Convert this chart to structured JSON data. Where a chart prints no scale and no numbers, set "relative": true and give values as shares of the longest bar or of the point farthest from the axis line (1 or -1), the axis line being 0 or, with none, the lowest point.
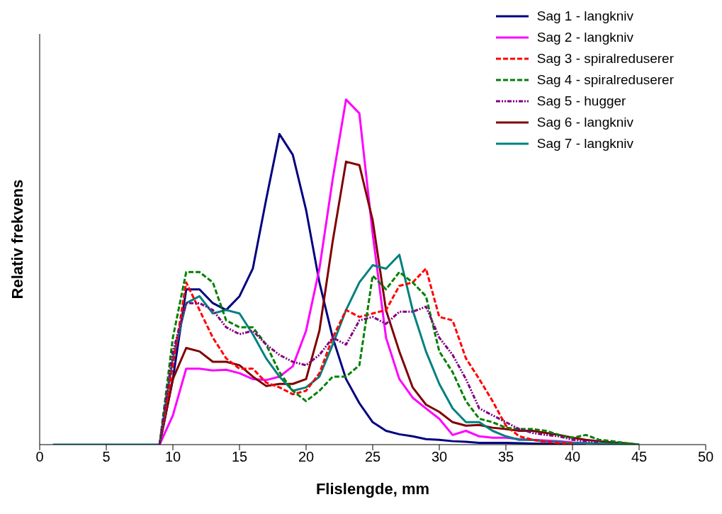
{
  "chart_data": {
    "type": "line",
    "relative": true,
    "xlabel": "Flislengde, mm",
    "ylabel": "Relativ frekvens",
    "xlim": [
      0,
      50
    ],
    "xticks": [
      0,
      5,
      10,
      15,
      20,
      25,
      30,
      35,
      40,
      45,
      50
    ],
    "grid": false,
    "legend": "top right",
    "marker": "none",
    "x": [
      1,
      8,
      9,
      10,
      11,
      12,
      13,
      14,
      15,
      16,
      17,
      18,
      19,
      20,
      21,
      22,
      23,
      24,
      25,
      26,
      27,
      28,
      29,
      30,
      31,
      32,
      33,
      34,
      35,
      36,
      37,
      38,
      39,
      40,
      41,
      42,
      43,
      44,
      45
    ],
    "series": [
      {
        "name": "Sag 1 - langkniv",
        "color": "#000080",
        "line_style": "solid",
        "values": [
          null,
          null,
          0,
          0.19,
          0.45,
          0.45,
          0.41,
          0.39,
          0.43,
          0.51,
          0.71,
          0.9,
          0.84,
          0.68,
          0.47,
          0.31,
          0.19,
          0.12,
          0.065,
          0.04,
          0.03,
          0.024,
          0.016,
          0.014,
          0.01,
          0.008,
          0.005,
          0.005,
          0.005,
          0.004,
          0.003,
          0.002,
          0.001,
          0,
          0,
          null,
          null,
          null,
          null
        ]
      },
      {
        "name": "Sag 2 - langkniv",
        "color": "#ff00ff",
        "line_style": "solid",
        "values": [
          null,
          null,
          0,
          0.085,
          0.22,
          0.22,
          0.215,
          0.217,
          0.207,
          0.19,
          0.187,
          0.197,
          0.227,
          0.33,
          0.51,
          0.77,
          1,
          0.96,
          0.61,
          0.31,
          0.19,
          0.136,
          0.105,
          0.075,
          0.028,
          0.04,
          0.024,
          0.02,
          0.02,
          0.016,
          0.014,
          0.012,
          0.01,
          0.006,
          0.004,
          null,
          null,
          null,
          null
        ]
      },
      {
        "name": "Sag 3 - spiralreduserer",
        "color": "#ff0000",
        "line_style": "dashed",
        "values": [
          null,
          null,
          0,
          0.23,
          0.47,
          0.39,
          0.31,
          0.25,
          0.22,
          0.22,
          0.18,
          0.166,
          0.146,
          0.156,
          0.207,
          0.31,
          0.39,
          0.37,
          0.38,
          0.39,
          0.46,
          0.47,
          0.51,
          0.37,
          0.36,
          0.25,
          0.19,
          0.126,
          0.055,
          0.024,
          0.014,
          0.008,
          0.004,
          0.003,
          null,
          null,
          null,
          null,
          null
        ]
      },
      {
        "name": "Sag 4 - spiralreduserer",
        "color": "#008000",
        "line_style": "dashed",
        "values": [
          null,
          null,
          0,
          0.31,
          0.5,
          0.5,
          0.47,
          0.36,
          0.34,
          0.34,
          0.29,
          0.21,
          0.156,
          0.126,
          0.156,
          0.197,
          0.197,
          0.23,
          0.49,
          0.45,
          0.5,
          0.47,
          0.43,
          0.27,
          0.21,
          0.126,
          0.075,
          0.065,
          0.049,
          0.045,
          0.045,
          0.04,
          0.028,
          0.02,
          0.028,
          0.014,
          0.01,
          0.004,
          0
        ]
      },
      {
        "name": "Sag 5 - hugger",
        "color": "#800080",
        "line_style": "dotted",
        "values": [
          null,
          null,
          0,
          0.27,
          0.41,
          0.41,
          0.39,
          0.34,
          0.32,
          0.33,
          0.29,
          0.26,
          0.24,
          0.23,
          0.26,
          0.31,
          0.29,
          0.36,
          0.37,
          0.35,
          0.385,
          0.385,
          0.4,
          0.31,
          0.26,
          0.19,
          0.105,
          0.085,
          0.065,
          0.045,
          0.034,
          0.028,
          0.024,
          0.014,
          0.01,
          0.008,
          null,
          null,
          null
        ]
      },
      {
        "name": "Sag 6 - langkniv",
        "color": "#800000",
        "line_style": "solid",
        "values": [
          null,
          null,
          0,
          0.19,
          0.28,
          0.27,
          0.24,
          0.24,
          0.23,
          0.197,
          0.17,
          0.176,
          0.176,
          0.19,
          0.33,
          0.59,
          0.82,
          0.81,
          0.65,
          0.39,
          0.27,
          0.166,
          0.116,
          0.095,
          0.065,
          0.055,
          0.057,
          0.049,
          0.045,
          0.04,
          0.04,
          0.034,
          0.028,
          0.02,
          0.014,
          0.01,
          0.006,
          0.004,
          0
        ]
      },
      {
        "name": "Sag 7 - langkniv",
        "color": "#008080",
        "line_style": "solid",
        "values": [
          0,
          0,
          0,
          0.25,
          0.41,
          0.43,
          0.38,
          0.39,
          0.38,
          0.32,
          0.25,
          0.197,
          0.156,
          0.166,
          0.197,
          0.29,
          0.39,
          0.47,
          0.52,
          0.51,
          0.55,
          0.39,
          0.27,
          0.176,
          0.105,
          0.065,
          0.065,
          0.04,
          0.024,
          0.014,
          0.014,
          0.008,
          0.008,
          0.004,
          0.004,
          0.003,
          0.002,
          0.001,
          0
        ]
      }
    ]
  }
}
